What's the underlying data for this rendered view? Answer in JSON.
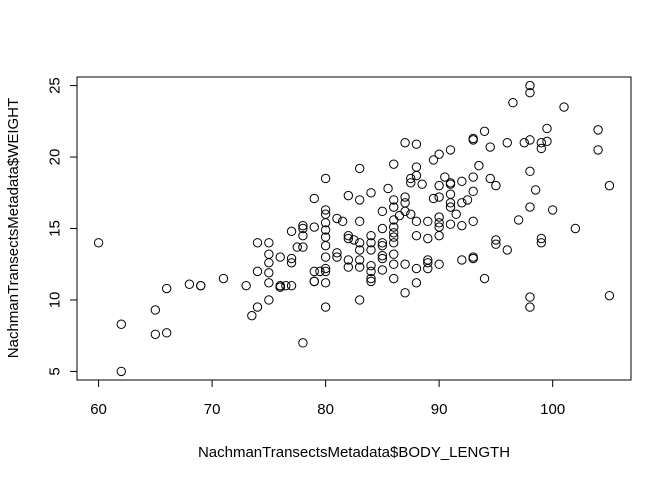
{
  "chart_data": {
    "type": "scatter",
    "xlabel": "NachmanTransectsMetadata$BODY_LENGTH",
    "ylabel": "NachmanTransectsMetadata$WEIGHT",
    "xlim": [
      58.1,
      106.9
    ],
    "ylim": [
      4.4,
      25.6
    ],
    "x_ticks": [
      60,
      70,
      80,
      90,
      100
    ],
    "y_ticks": [
      5,
      10,
      15,
      20,
      25
    ],
    "grid": false,
    "marker": "open-circle",
    "series": [
      {
        "points": [
          [
            60,
            14.0
          ],
          [
            62,
            8.3
          ],
          [
            62,
            5.0
          ],
          [
            65,
            9.3
          ],
          [
            65,
            7.6
          ],
          [
            66,
            10.8
          ],
          [
            66,
            7.7
          ],
          [
            68,
            11.1
          ],
          [
            69,
            11.0
          ],
          [
            69,
            11.0
          ],
          [
            71,
            11.5
          ],
          [
            73,
            11.0
          ],
          [
            73.5,
            8.9
          ],
          [
            74,
            14.0
          ],
          [
            74,
            12.0
          ],
          [
            74,
            9.5
          ],
          [
            75,
            14.0
          ],
          [
            75,
            13.2
          ],
          [
            75,
            12.6
          ],
          [
            75,
            11.9
          ],
          [
            75,
            11.2
          ],
          [
            75,
            10.0
          ],
          [
            76,
            13.0
          ],
          [
            76,
            11.0
          ],
          [
            76,
            10.9
          ],
          [
            76,
            10.9
          ],
          [
            76.5,
            11.0
          ],
          [
            77,
            12.9
          ],
          [
            77,
            12.6
          ],
          [
            77,
            11.0
          ],
          [
            77,
            14.8
          ],
          [
            77.5,
            13.7
          ],
          [
            78,
            14.5
          ],
          [
            78,
            15.2
          ],
          [
            78,
            15.0
          ],
          [
            78,
            13.7
          ],
          [
            78,
            7.0
          ],
          [
            79,
            17.1
          ],
          [
            79,
            15.1
          ],
          [
            79,
            12.0
          ],
          [
            79,
            11.3
          ],
          [
            79,
            11.3
          ],
          [
            79.5,
            12.0
          ],
          [
            80,
            18.5
          ],
          [
            80,
            16.3
          ],
          [
            80,
            16.0
          ],
          [
            80,
            15.4
          ],
          [
            80,
            14.9
          ],
          [
            80,
            14.4
          ],
          [
            80,
            13.8
          ],
          [
            80,
            13.0
          ],
          [
            80,
            12.2
          ],
          [
            80,
            12.0
          ],
          [
            80,
            11.2
          ],
          [
            80,
            9.5
          ],
          [
            81,
            15.7
          ],
          [
            81,
            13.3
          ],
          [
            81,
            13.0
          ],
          [
            81.5,
            15.5
          ],
          [
            82,
            17.3
          ],
          [
            82,
            14.3
          ],
          [
            82,
            14.5
          ],
          [
            82,
            12.8
          ],
          [
            82,
            12.3
          ],
          [
            82.5,
            14.2
          ],
          [
            83,
            19.2
          ],
          [
            83,
            17.0
          ],
          [
            83,
            15.5
          ],
          [
            83,
            14.0
          ],
          [
            83,
            13.5
          ],
          [
            83,
            12.8
          ],
          [
            83,
            12.3
          ],
          [
            83,
            10.0
          ],
          [
            84,
            17.5
          ],
          [
            84,
            14.5
          ],
          [
            84,
            14.0
          ],
          [
            84,
            13.5
          ],
          [
            84,
            12.4
          ],
          [
            84,
            12.0
          ],
          [
            84,
            11.5
          ],
          [
            84,
            11.3
          ],
          [
            85,
            16.2
          ],
          [
            85,
            15.0
          ],
          [
            85,
            14.0
          ],
          [
            85,
            13.8
          ],
          [
            85,
            13.1
          ],
          [
            85,
            12.9
          ],
          [
            85,
            12.1
          ],
          [
            85.5,
            17.8
          ],
          [
            86,
            19.5
          ],
          [
            86,
            17.0
          ],
          [
            86,
            16.5
          ],
          [
            86,
            15.6
          ],
          [
            86,
            15.1
          ],
          [
            86,
            14.7
          ],
          [
            86,
            14.4
          ],
          [
            86,
            14.0
          ],
          [
            86,
            13.2
          ],
          [
            86,
            12.5
          ],
          [
            86,
            11.5
          ],
          [
            86.5,
            15.9
          ],
          [
            87,
            21.0
          ],
          [
            87,
            17.2
          ],
          [
            87,
            16.8
          ],
          [
            87,
            16.2
          ],
          [
            87,
            12.5
          ],
          [
            87,
            10.5
          ],
          [
            87.5,
            18.2
          ],
          [
            87.5,
            18.5
          ],
          [
            87.5,
            16.0
          ],
          [
            88,
            20.9
          ],
          [
            88,
            19.3
          ],
          [
            88,
            18.7
          ],
          [
            88,
            15.5
          ],
          [
            88,
            14.5
          ],
          [
            88,
            12.2
          ],
          [
            88,
            11.2
          ],
          [
            88.5,
            18.1
          ],
          [
            89,
            15.5
          ],
          [
            89,
            14.3
          ],
          [
            89,
            12.8
          ],
          [
            89,
            12.6
          ],
          [
            89,
            12.2
          ],
          [
            89.5,
            19.8
          ],
          [
            89.5,
            17.1
          ],
          [
            90,
            20.2
          ],
          [
            90,
            18.0
          ],
          [
            90,
            17.2
          ],
          [
            90,
            15.8
          ],
          [
            90,
            15.4
          ],
          [
            90,
            15.1
          ],
          [
            90,
            14.5
          ],
          [
            90,
            12.5
          ],
          [
            90.5,
            18.6
          ],
          [
            91,
            20.5
          ],
          [
            91,
            18.2
          ],
          [
            91,
            18.1
          ],
          [
            91,
            17.4
          ],
          [
            91,
            16.8
          ],
          [
            91,
            16.5
          ],
          [
            91,
            15.3
          ],
          [
            91.5,
            16.0
          ],
          [
            92,
            18.3
          ],
          [
            92,
            16.8
          ],
          [
            92,
            15.2
          ],
          [
            92,
            12.8
          ],
          [
            92.5,
            17.0
          ],
          [
            93,
            21.3
          ],
          [
            93,
            21.2
          ],
          [
            93,
            18.6
          ],
          [
            93,
            17.6
          ],
          [
            93,
            15.5
          ],
          [
            93,
            13.0
          ],
          [
            93,
            12.9
          ],
          [
            93.5,
            19.4
          ],
          [
            94,
            21.8
          ],
          [
            94,
            11.5
          ],
          [
            94.5,
            20.7
          ],
          [
            94.5,
            18.5
          ],
          [
            95,
            18.0
          ],
          [
            95,
            14.2
          ],
          [
            95,
            13.9
          ],
          [
            96,
            21.0
          ],
          [
            96,
            13.5
          ],
          [
            96.5,
            23.8
          ],
          [
            97,
            15.6
          ],
          [
            97.5,
            21.0
          ],
          [
            98,
            25.0
          ],
          [
            98,
            24.5
          ],
          [
            98,
            21.2
          ],
          [
            98,
            19.0
          ],
          [
            98,
            16.5
          ],
          [
            98,
            10.2
          ],
          [
            98,
            9.5
          ],
          [
            98.5,
            17.7
          ],
          [
            99,
            21.0
          ],
          [
            99,
            20.6
          ],
          [
            99,
            14.3
          ],
          [
            99,
            14.0
          ],
          [
            99.5,
            22.0
          ],
          [
            99.5,
            21.1
          ],
          [
            100,
            16.3
          ],
          [
            101,
            23.5
          ],
          [
            102,
            15.0
          ],
          [
            104,
            21.9
          ],
          [
            104,
            20.5
          ],
          [
            105,
            18.0
          ],
          [
            105,
            10.3
          ]
        ]
      }
    ]
  }
}
